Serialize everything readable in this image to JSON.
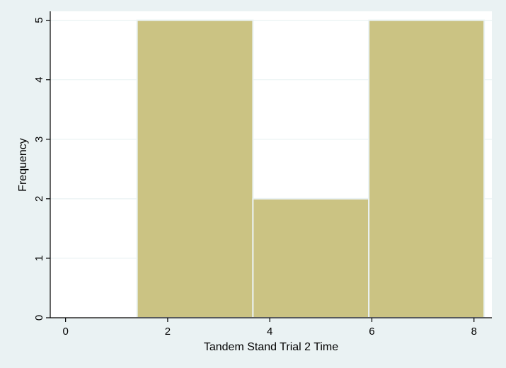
{
  "chart_data": {
    "type": "bar",
    "subtype": "histogram",
    "xlabel": "Tandem Stand Trial 2 Time",
    "ylabel": "Frequency",
    "xlim": [
      -0.3,
      8.35
    ],
    "ylim": [
      0,
      5.15
    ],
    "x_ticks": [
      "0",
      "2",
      "4",
      "6",
      "8"
    ],
    "x_tick_values": [
      0,
      2,
      4,
      6,
      8
    ],
    "y_ticks": [
      "0",
      "1",
      "2",
      "3",
      "4",
      "5"
    ],
    "y_tick_values": [
      0,
      1,
      2,
      3,
      4,
      5
    ],
    "bins": [
      {
        "start": 1.4,
        "end": 3.67,
        "value": 5
      },
      {
        "start": 3.67,
        "end": 5.94,
        "value": 2
      },
      {
        "start": 5.94,
        "end": 8.2,
        "value": 5
      }
    ],
    "grid": "horizontal",
    "legend": "none",
    "colors": {
      "bar_fill": "#cbc383",
      "bar_stroke": "#eaf2f3",
      "plot_bg": "#ffffff",
      "page_bg": "#eaf2f3",
      "grid": "#eaf2f3",
      "axis": "#000000"
    }
  }
}
